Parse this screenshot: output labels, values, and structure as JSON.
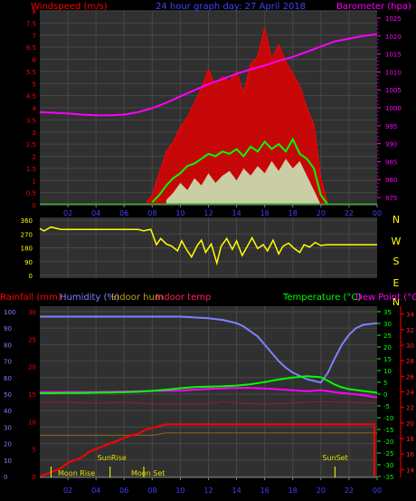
{
  "chart_data": [
    {
      "type": "line",
      "title": "24 hour graph day:  27 April 2018",
      "left_axis_title": "Windspeed (m/s)",
      "right_axis_title": "Barometer (hpa)",
      "x_tick_labels": [
        "02",
        "04",
        "06",
        "08",
        "10",
        "12",
        "14",
        "16",
        "18",
        "20",
        "22",
        "00"
      ],
      "x_range": [
        0,
        24
      ],
      "left_ylim": [
        0,
        8
      ],
      "left_ticks": [
        "0",
        "0.5",
        "1",
        "1.5",
        "2",
        "2.5",
        "3",
        "3.5",
        "4",
        "4.5",
        "5",
        "5.5",
        "6",
        "6.5",
        "7",
        "7.5",
        "8"
      ],
      "right_ylim": [
        975,
        1025
      ],
      "right_ticks": [
        "975",
        "980",
        "985",
        "990",
        "995",
        "1000",
        "1005",
        "1010",
        "1015",
        "1020",
        "1025"
      ],
      "series": [
        {
          "role": "barometer",
          "color": "#ff00ff",
          "axis": "right",
          "x": [
            0,
            1,
            2,
            3,
            4,
            5,
            6,
            7,
            8,
            9,
            10,
            11,
            12,
            13,
            14,
            15,
            16,
            17,
            18,
            19,
            20,
            21,
            22,
            23,
            24
          ],
          "y": [
            998.8,
            998.6,
            998.4,
            998.1,
            997.9,
            997.9,
            998.1,
            998.8,
            999.9,
            1001.4,
            1003.2,
            1004.9,
            1006.6,
            1008.0,
            1009.5,
            1010.7,
            1011.8,
            1013.1,
            1014.2,
            1015.6,
            1017.1,
            1018.5,
            1019.3,
            1020.0,
            1020.5
          ]
        },
        {
          "role": "gust",
          "color": "#ff0000",
          "axis": "left",
          "x": [
            7.5,
            8.0,
            8.5,
            9.0,
            9.5,
            10.0,
            10.5,
            11.0,
            11.5,
            12.0,
            12.5,
            13.0,
            13.5,
            14.0,
            14.5,
            15.0,
            15.5,
            16.0,
            16.5,
            17.0,
            17.5,
            18.0,
            18.5,
            19.0,
            19.5,
            20.0,
            20.5
          ],
          "y": [
            0,
            0.4,
            1.3,
            2.2,
            2.6,
            3.2,
            3.6,
            4.2,
            4.8,
            5.6,
            4.9,
            5.3,
            5.1,
            5.5,
            4.6,
            5.8,
            6.1,
            7.3,
            6.0,
            6.6,
            5.9,
            5.4,
            4.9,
            4.0,
            3.3,
            1.1,
            0
          ]
        },
        {
          "role": "average",
          "color": "#00ff00",
          "axis": "left",
          "x": [
            8.0,
            8.5,
            9.0,
            9.5,
            10.0,
            10.5,
            11.0,
            11.5,
            12.0,
            12.5,
            13.0,
            13.5,
            14.0,
            14.5,
            15.0,
            15.5,
            16.0,
            16.5,
            17.0,
            17.5,
            18.0,
            18.5,
            19.0,
            19.5,
            20.0,
            20.5
          ],
          "y": [
            0.1,
            0.4,
            0.8,
            1.1,
            1.3,
            1.6,
            1.7,
            1.9,
            2.1,
            2.0,
            2.2,
            2.1,
            2.3,
            2.0,
            2.4,
            2.2,
            2.6,
            2.3,
            2.5,
            2.2,
            2.7,
            2.1,
            1.9,
            1.5,
            0.4,
            0
          ]
        },
        {
          "role": "lull",
          "color": "#ccffcc",
          "axis": "left",
          "x": [
            9.0,
            9.5,
            10.0,
            10.5,
            11.0,
            11.5,
            12.0,
            12.5,
            13.0,
            13.5,
            14.0,
            14.5,
            15.0,
            15.5,
            16.0,
            16.5,
            17.0,
            17.5,
            18.0,
            18.5,
            19.0,
            19.5,
            20.0
          ],
          "y": [
            0.2,
            0.5,
            0.9,
            0.6,
            1.1,
            0.8,
            1.3,
            0.9,
            1.2,
            1.4,
            1.0,
            1.5,
            1.2,
            1.6,
            1.3,
            1.8,
            1.4,
            1.9,
            1.5,
            1.8,
            1.2,
            0.6,
            0
          ]
        }
      ]
    },
    {
      "type": "scatter",
      "title": "",
      "left_ticks": [
        "0",
        "90",
        "180",
        "270",
        "360"
      ],
      "ylim": [
        0,
        360
      ],
      "compass_labels": [
        "N",
        "W",
        "S",
        "E",
        "N"
      ],
      "series": [
        {
          "role": "direction",
          "color": "#ffff00",
          "x": [
            0.0,
            0.3,
            0.8,
            1.5,
            2.5,
            3.5,
            4.5,
            5.5,
            6.5,
            7.0,
            7.4,
            7.6,
            7.9,
            8.3,
            8.6,
            9.0,
            9.4,
            9.8,
            10.1,
            10.4,
            10.8,
            11.2,
            11.5,
            11.8,
            12.2,
            12.6,
            12.9,
            13.3,
            13.7,
            14.0,
            14.4,
            14.8,
            15.1,
            15.5,
            15.9,
            16.2,
            16.6,
            17.0,
            17.3,
            17.7,
            18.1,
            18.5,
            18.8,
            19.2,
            19.6,
            20.0,
            20.4,
            21.0,
            22.0,
            23.0,
            24.0
          ],
          "y": [
            305,
            290,
            315,
            300,
            300,
            300,
            300,
            300,
            300,
            300,
            290,
            295,
            300,
            200,
            240,
            205,
            190,
            160,
            225,
            175,
            120,
            195,
            230,
            150,
            205,
            80,
            190,
            240,
            170,
            225,
            130,
            195,
            245,
            175,
            200,
            160,
            230,
            140,
            190,
            210,
            175,
            150,
            200,
            185,
            215,
            195,
            200,
            200,
            200,
            200,
            200
          ]
        }
      ]
    },
    {
      "type": "line",
      "title": "",
      "left_axis_titles": [
        "Rainfall (mm)",
        "Humidity (%)",
        "Indoor hum",
        "Indoor temp"
      ],
      "right_axis_titles": [
        "Temperature (°C)",
        "Dew Point (°C)"
      ],
      "x_tick_labels": [
        "02",
        "04",
        "06",
        "08",
        "10",
        "12",
        "14",
        "16",
        "18",
        "20",
        "22",
        "00"
      ],
      "x_range": [
        0,
        24
      ],
      "humidity_ticks": [
        "0",
        "10",
        "20",
        "30",
        "40",
        "50",
        "60",
        "70",
        "80",
        "90",
        "100"
      ],
      "humidity_ylim": [
        0,
        100
      ],
      "rain_ticks": [
        "0",
        "5",
        "10",
        "15",
        "20",
        "25",
        "30"
      ],
      "rain_ylim": [
        0,
        30
      ],
      "temp_ticks": [
        "-35",
        "-30",
        "-25",
        "-20",
        "-15",
        "-10",
        "-5",
        "0",
        "5",
        "10",
        "15",
        "20",
        "25",
        "30",
        "35"
      ],
      "temp_ylim": [
        -35,
        35
      ],
      "dew_ticks": [
        "14",
        "16",
        "18",
        "20",
        "22",
        "24",
        "26",
        "28",
        "30",
        "32",
        "34"
      ],
      "dew_ylim": [
        13,
        35
      ],
      "events": [
        {
          "label": "Moon Rise",
          "x": 0.8
        },
        {
          "label": "SunRise",
          "x": 5.0
        },
        {
          "label": "Moon Set",
          "x": 7.4
        },
        {
          "label": "SunSet",
          "x": 21.0
        }
      ],
      "series": [
        {
          "role": "humidity",
          "color": "#8080ff",
          "axis": "humidity",
          "x": [
            0,
            1,
            2,
            3,
            4,
            5,
            6,
            7,
            8,
            9,
            10,
            11,
            12,
            13,
            13.5,
            14,
            14.5,
            15,
            15.5,
            16,
            16.5,
            17,
            17.5,
            18,
            18.5,
            19,
            19.5,
            20,
            20.5,
            21,
            21.5,
            22,
            22.5,
            23,
            23.5,
            24
          ],
          "y": [
            97,
            97,
            97,
            97,
            97,
            97,
            97,
            97,
            97,
            97,
            97,
            96.5,
            96,
            95,
            94,
            93,
            91,
            88,
            85,
            80,
            75,
            70,
            66,
            63,
            61,
            59,
            58,
            57,
            63,
            72,
            80,
            86,
            90,
            92,
            92.5,
            93
          ]
        },
        {
          "role": "temperature",
          "color": "#00ff00",
          "axis": "temp",
          "x": [
            0,
            1,
            2,
            3,
            4,
            5,
            6,
            7,
            8,
            9,
            10,
            11,
            12,
            13,
            14,
            15,
            16,
            17,
            18,
            19,
            20,
            20.5,
            21,
            21.5,
            22,
            23,
            24
          ],
          "y": [
            0.4,
            0.4,
            0.5,
            0.5,
            0.6,
            0.7,
            0.8,
            1.0,
            1.4,
            1.9,
            2.5,
            3.0,
            3.2,
            3.3,
            3.6,
            4.2,
            5.1,
            6.2,
            7.0,
            7.6,
            7.2,
            5.6,
            4.0,
            2.9,
            2.1,
            1.3,
            0.6
          ]
        },
        {
          "role": "dew_point",
          "color": "#ff00ff",
          "axis": "temp",
          "x": [
            0,
            2,
            4,
            6,
            8,
            10,
            12,
            14,
            15,
            16,
            17,
            18,
            19,
            20,
            21,
            22,
            23,
            24
          ],
          "y": [
            0.8,
            0.9,
            0.9,
            1.1,
            1.3,
            1.5,
            2.2,
            2.6,
            2.6,
            2.4,
            2.0,
            1.6,
            1.2,
            1.6,
            0.8,
            0.2,
            -0.5,
            -1.4
          ]
        },
        {
          "role": "indoor_hum",
          "color": "#806020",
          "axis": "humidity",
          "x": [
            0,
            4,
            8,
            9,
            12,
            16,
            20,
            22,
            24
          ],
          "y": [
            25,
            25,
            25,
            26.5,
            26.5,
            26.5,
            26.5,
            26.5,
            26.5
          ]
        },
        {
          "role": "indoor_temp",
          "color": "#802040",
          "axis": "humidity",
          "x": [
            0,
            2,
            4,
            6,
            8,
            10,
            12,
            13,
            14,
            16,
            18,
            20,
            22,
            24
          ],
          "y": [
            45,
            45,
            44.5,
            45,
            44,
            44,
            44,
            45.5,
            44.5,
            44,
            44.5,
            45.5,
            45,
            44.5
          ]
        },
        {
          "role": "rainfall",
          "color": "#ff0000",
          "axis": "rain",
          "x": [
            0,
            0.5,
            1,
            1.5,
            2,
            2.5,
            3,
            3.5,
            4,
            4.5,
            5,
            5.5,
            6,
            6.5,
            7,
            7.5,
            8,
            8.5,
            9,
            12,
            16,
            20,
            23.8,
            23.8
          ],
          "y": [
            0,
            0.5,
            1,
            1.5,
            2.5,
            3,
            3.5,
            4.5,
            5,
            5.5,
            6,
            6.5,
            7,
            7.5,
            7.8,
            8.5,
            8.8,
            9.2,
            9.5,
            9.5,
            9.5,
            9.5,
            9.5,
            0
          ]
        }
      ]
    }
  ]
}
